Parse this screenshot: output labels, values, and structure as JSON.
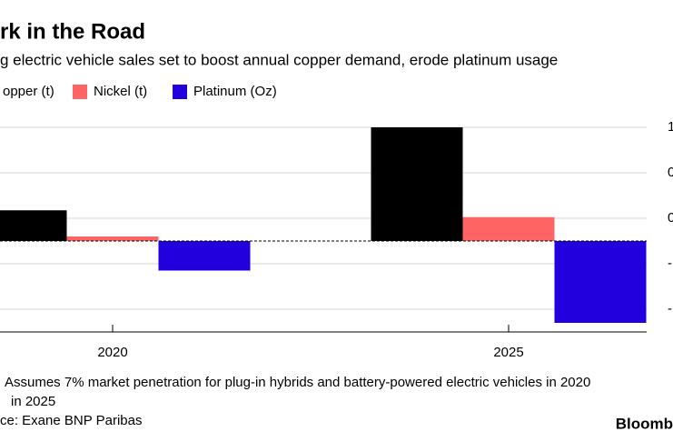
{
  "chart_data": {
    "type": "bar",
    "title": "rk in the Road",
    "subtitle": "g electric vehicle sales set to boost annual copper demand, erode platinum usage",
    "categories": [
      "2020",
      "2025"
    ],
    "series": [
      {
        "name": "opper (t)",
        "color": "#000000",
        "values": [
          0.27,
          1.0
        ]
      },
      {
        "name": "Nickel (t)",
        "color": "#ff6464",
        "values": [
          0.04,
          0.21
        ]
      },
      {
        "name": "Platinum (Oz)",
        "color": "#2200dd",
        "values": [
          -0.26,
          -0.72
        ]
      }
    ],
    "ylim": [
      -0.8,
      1.08
    ],
    "yticks": [
      {
        "value": 1.0,
        "label": "1"
      },
      {
        "value": 0.6,
        "label": "0"
      },
      {
        "value": 0.2,
        "label": "0"
      },
      {
        "value": -0.2,
        "label": "-"
      },
      {
        "value": -0.6,
        "label": "-"
      }
    ],
    "grid": true,
    "notes": [
      "Assumes 7% market penetration for plug-in hybrids and battery-powered electric vehicles in 2020",
      "in 2025",
      "ce: Exane BNP Paribas"
    ],
    "brand": "Bloomb"
  }
}
